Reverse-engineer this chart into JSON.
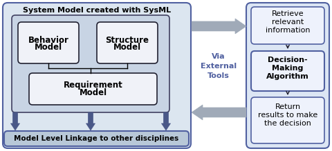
{
  "fig_width": 4.8,
  "fig_height": 2.19,
  "dpi": 100,
  "bg_color": "#ffffff",
  "left_panel_bg": "#dce6f0",
  "left_panel_border": "#5060a0",
  "inner_box_bg": "#c8d4e4",
  "inner_box_border": "#404060",
  "model_box_bg": "#f0f2f8",
  "model_box_border": "#202030",
  "right_panel_bg": "#dce6f4",
  "right_panel_border": "#5060a0",
  "right_box_bg": "#eef2fc",
  "right_box_border": "#5060a0",
  "linkage_box_bg": "#b8c8d8",
  "linkage_box_border": "#5060a0",
  "big_arrow_color": "#a0aab8",
  "dark_arrow_color": "#4a5888",
  "small_arrow_color": "#202030",
  "title": "System Model created with SysML",
  "box1_line1": "Behavior",
  "box1_line2": "Model",
  "box2_line1": "Structure",
  "box2_line2": "Model",
  "box3_line1": "Requirement",
  "box3_line2": "Model",
  "linkage_text": "Model Level Linkage to other disciplines",
  "rb1_line1": "Retrieve",
  "rb1_line2": "relevant",
  "rb1_line3": "information",
  "rb2_line1": "Decision-",
  "rb2_line2": "Making",
  "rb2_line3": "Algorithm",
  "rb3_line1": "Return",
  "rb3_line2": "results to make",
  "rb3_line3": "the decision",
  "via_line1": "Via",
  "via_line2": "External",
  "via_line3": "Tools"
}
